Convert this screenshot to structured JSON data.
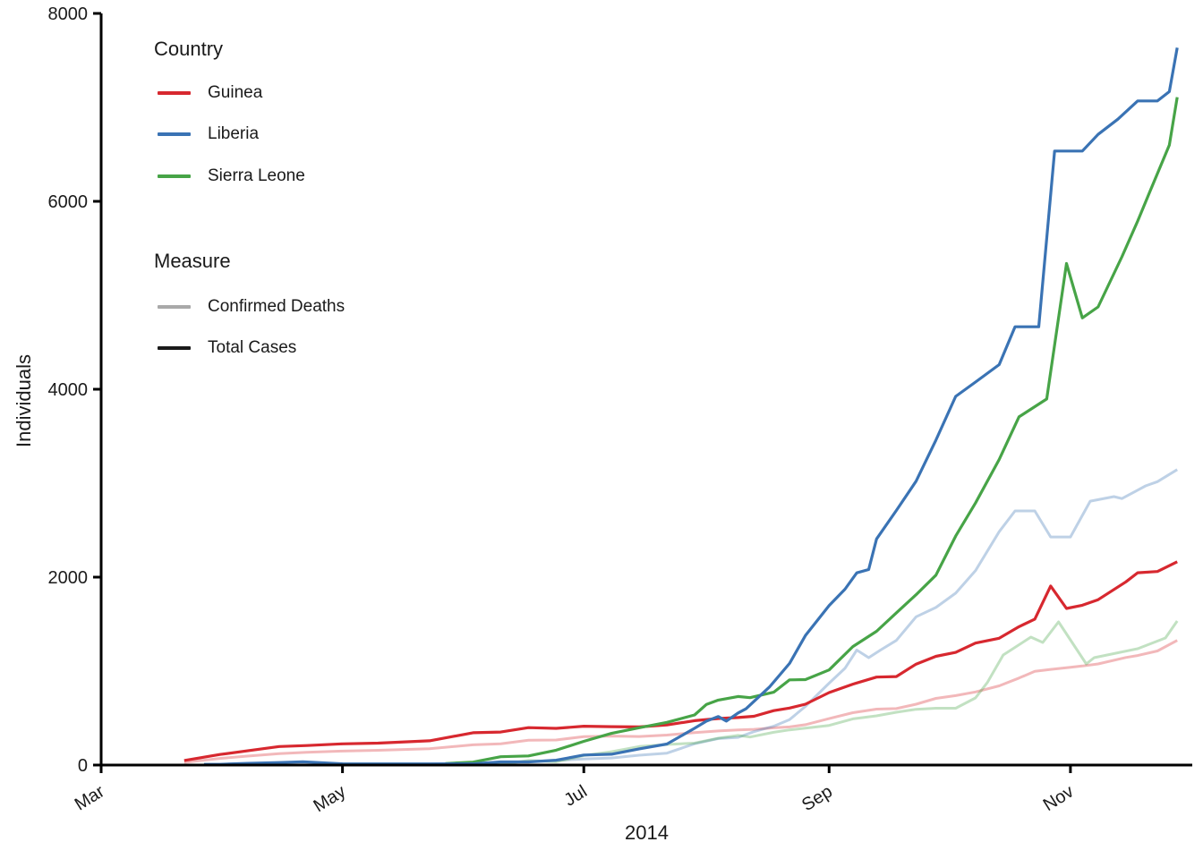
{
  "chart_data": {
    "type": "line",
    "title": "",
    "xlabel": "2014",
    "ylabel": "Individuals",
    "ylim": [
      0,
      8000
    ],
    "yticks": [
      0,
      2000,
      4000,
      6000,
      8000
    ],
    "xticks": [
      {
        "label": "Mar",
        "date": "2014-03-01"
      },
      {
        "label": "May",
        "date": "2014-05-01"
      },
      {
        "label": "Jul",
        "date": "2014-07-01"
      },
      {
        "label": "Sep",
        "date": "2014-09-01"
      },
      {
        "label": "Nov",
        "date": "2014-11-01"
      }
    ],
    "x_range": [
      "2014-03-01",
      "2014-12-01"
    ],
    "grid": false,
    "legend_position": "inside-top-left",
    "legend": {
      "country_title": "Country",
      "measure_title": "Measure",
      "countries": [
        {
          "label": "Guinea",
          "color": "#d7282f"
        },
        {
          "label": "Liberia",
          "color": "#3a73b4"
        },
        {
          "label": "Sierra Leone",
          "color": "#47a447"
        }
      ],
      "measures": [
        {
          "label": "Confirmed Deaths",
          "color": "#a9a9a9"
        },
        {
          "label": "Total Cases",
          "color": "#1a1a1a"
        }
      ]
    },
    "series": [
      {
        "name": "Guinea Confirmed Deaths",
        "country": "Guinea",
        "measure": "Confirmed Deaths",
        "color": "#d7282f",
        "opacity": 0.33,
        "width": 3,
        "points": [
          [
            "2014-03-22",
            29
          ],
          [
            "2014-03-31",
            70
          ],
          [
            "2014-04-07",
            95
          ],
          [
            "2014-04-15",
            122
          ],
          [
            "2014-04-22",
            136
          ],
          [
            "2014-05-01",
            149
          ],
          [
            "2014-05-10",
            157
          ],
          [
            "2014-05-23",
            174
          ],
          [
            "2014-06-03",
            215
          ],
          [
            "2014-06-10",
            226
          ],
          [
            "2014-06-17",
            264
          ],
          [
            "2014-06-24",
            267
          ],
          [
            "2014-07-01",
            303
          ],
          [
            "2014-07-08",
            309
          ],
          [
            "2014-07-15",
            304
          ],
          [
            "2014-07-22",
            319
          ],
          [
            "2014-07-29",
            346
          ],
          [
            "2014-08-04",
            363
          ],
          [
            "2014-08-09",
            373
          ],
          [
            "2014-08-13",
            380
          ],
          [
            "2014-08-18",
            396
          ],
          [
            "2014-08-22",
            406
          ],
          [
            "2014-08-26",
            430
          ],
          [
            "2014-09-01",
            494
          ],
          [
            "2014-09-07",
            557
          ],
          [
            "2014-09-13",
            595
          ],
          [
            "2014-09-18",
            601
          ],
          [
            "2014-09-23",
            648
          ],
          [
            "2014-09-28",
            710
          ],
          [
            "2014-10-03",
            739
          ],
          [
            "2014-10-08",
            778
          ],
          [
            "2014-10-14",
            843
          ],
          [
            "2014-10-19",
            926
          ],
          [
            "2014-10-23",
            997
          ],
          [
            "2014-10-27",
            1018
          ],
          [
            "2014-11-01",
            1041
          ],
          [
            "2014-11-04",
            1054
          ],
          [
            "2014-11-08",
            1076
          ],
          [
            "2014-11-15",
            1145
          ],
          [
            "2014-11-18",
            1166
          ],
          [
            "2014-11-23",
            1214
          ],
          [
            "2014-11-28",
            1327
          ]
        ]
      },
      {
        "name": "Liberia Confirmed Deaths",
        "country": "Liberia",
        "measure": "Confirmed Deaths",
        "color": "#3a73b4",
        "opacity": 0.33,
        "width": 3,
        "points": [
          [
            "2014-04-07",
            2
          ],
          [
            "2014-04-21",
            13
          ],
          [
            "2014-05-10",
            11
          ],
          [
            "2014-05-23",
            11
          ],
          [
            "2014-06-10",
            24
          ],
          [
            "2014-06-24",
            49
          ],
          [
            "2014-07-01",
            65
          ],
          [
            "2014-07-08",
            75
          ],
          [
            "2014-07-15",
            105
          ],
          [
            "2014-07-22",
            127
          ],
          [
            "2014-07-29",
            227
          ],
          [
            "2014-08-04",
            282
          ],
          [
            "2014-08-09",
            294
          ],
          [
            "2014-08-13",
            355
          ],
          [
            "2014-08-18",
            413
          ],
          [
            "2014-08-22",
            484
          ],
          [
            "2014-08-26",
            624
          ],
          [
            "2014-09-01",
            871
          ],
          [
            "2014-09-05",
            1030
          ],
          [
            "2014-09-08",
            1224
          ],
          [
            "2014-09-11",
            1143
          ],
          [
            "2014-09-14",
            1224
          ],
          [
            "2014-09-18",
            1327
          ],
          [
            "2014-09-23",
            1578
          ],
          [
            "2014-09-28",
            1677
          ],
          [
            "2014-10-03",
            1830
          ],
          [
            "2014-10-08",
            2069
          ],
          [
            "2014-10-14",
            2484
          ],
          [
            "2014-10-18",
            2705
          ],
          [
            "2014-10-23",
            2705
          ],
          [
            "2014-10-27",
            2428
          ],
          [
            "2014-11-01",
            2428
          ],
          [
            "2014-11-06",
            2809
          ],
          [
            "2014-11-12",
            2857
          ],
          [
            "2014-11-14",
            2836
          ],
          [
            "2014-11-20",
            2971
          ],
          [
            "2014-11-23",
            3016
          ],
          [
            "2014-11-28",
            3145
          ]
        ]
      },
      {
        "name": "Sierra Leone Confirmed Deaths",
        "country": "Sierra Leone",
        "measure": "Confirmed Deaths",
        "color": "#47a447",
        "opacity": 0.33,
        "width": 3,
        "points": [
          [
            "2014-05-27",
            5
          ],
          [
            "2014-06-03",
            7
          ],
          [
            "2014-06-10",
            7
          ],
          [
            "2014-06-17",
            49
          ],
          [
            "2014-06-24",
            34
          ],
          [
            "2014-07-01",
            101
          ],
          [
            "2014-07-08",
            142
          ],
          [
            "2014-07-15",
            197
          ],
          [
            "2014-07-22",
            219
          ],
          [
            "2014-07-29",
            233
          ],
          [
            "2014-08-04",
            286
          ],
          [
            "2014-08-09",
            315
          ],
          [
            "2014-08-12",
            298
          ],
          [
            "2014-08-18",
            349
          ],
          [
            "2014-08-22",
            374
          ],
          [
            "2014-08-26",
            392
          ],
          [
            "2014-09-01",
            422
          ],
          [
            "2014-09-07",
            491
          ],
          [
            "2014-09-13",
            524
          ],
          [
            "2014-09-18",
            562
          ],
          [
            "2014-09-23",
            593
          ],
          [
            "2014-09-28",
            605
          ],
          [
            "2014-10-03",
            605
          ],
          [
            "2014-10-08",
            714
          ],
          [
            "2014-10-11",
            879
          ],
          [
            "2014-10-15",
            1171
          ],
          [
            "2014-10-22",
            1362
          ],
          [
            "2014-10-25",
            1305
          ],
          [
            "2014-10-29",
            1524
          ],
          [
            "2014-11-05",
            1076
          ],
          [
            "2014-11-07",
            1143
          ],
          [
            "2014-11-18",
            1238
          ],
          [
            "2014-11-25",
            1352
          ],
          [
            "2014-11-28",
            1533
          ]
        ]
      },
      {
        "name": "Guinea Total Cases",
        "country": "Guinea",
        "measure": "Total Cases",
        "color": "#d7282f",
        "opacity": 1,
        "width": 3.2,
        "points": [
          [
            "2014-03-22",
            49
          ],
          [
            "2014-03-31",
            112
          ],
          [
            "2014-04-07",
            151
          ],
          [
            "2014-04-15",
            197
          ],
          [
            "2014-04-22",
            208
          ],
          [
            "2014-05-01",
            226
          ],
          [
            "2014-05-10",
            233
          ],
          [
            "2014-05-23",
            258
          ],
          [
            "2014-06-03",
            344
          ],
          [
            "2014-06-10",
            351
          ],
          [
            "2014-06-17",
            398
          ],
          [
            "2014-06-24",
            390
          ],
          [
            "2014-07-01",
            413
          ],
          [
            "2014-07-08",
            409
          ],
          [
            "2014-07-15",
            406
          ],
          [
            "2014-07-22",
            427
          ],
          [
            "2014-07-29",
            472
          ],
          [
            "2014-08-04",
            495
          ],
          [
            "2014-08-09",
            506
          ],
          [
            "2014-08-13",
            519
          ],
          [
            "2014-08-18",
            579
          ],
          [
            "2014-08-22",
            607
          ],
          [
            "2014-08-26",
            648
          ],
          [
            "2014-09-01",
            771
          ],
          [
            "2014-09-07",
            861
          ],
          [
            "2014-09-13",
            936
          ],
          [
            "2014-09-18",
            942
          ],
          [
            "2014-09-23",
            1074
          ],
          [
            "2014-09-28",
            1157
          ],
          [
            "2014-10-03",
            1199
          ],
          [
            "2014-10-08",
            1298
          ],
          [
            "2014-10-14",
            1350
          ],
          [
            "2014-10-19",
            1472
          ],
          [
            "2014-10-23",
            1553
          ],
          [
            "2014-10-27",
            1906
          ],
          [
            "2014-10-31",
            1667
          ],
          [
            "2014-11-04",
            1701
          ],
          [
            "2014-11-08",
            1760
          ],
          [
            "2014-11-15",
            1950
          ],
          [
            "2014-11-18",
            2047
          ],
          [
            "2014-11-23",
            2060
          ],
          [
            "2014-11-28",
            2164
          ]
        ]
      },
      {
        "name": "Sierra Leone Total Cases",
        "country": "Sierra Leone",
        "measure": "Total Cases",
        "color": "#47a447",
        "opacity": 1,
        "width": 3.2,
        "points": [
          [
            "2014-05-27",
            16
          ],
          [
            "2014-06-03",
            31
          ],
          [
            "2014-06-10",
            89
          ],
          [
            "2014-06-17",
            97
          ],
          [
            "2014-06-24",
            158
          ],
          [
            "2014-07-01",
            252
          ],
          [
            "2014-07-08",
            337
          ],
          [
            "2014-07-15",
            397
          ],
          [
            "2014-07-22",
            454
          ],
          [
            "2014-07-29",
            533
          ],
          [
            "2014-08-01",
            646
          ],
          [
            "2014-08-04",
            691
          ],
          [
            "2014-08-09",
            730
          ],
          [
            "2014-08-12",
            717
          ],
          [
            "2014-08-18",
            775
          ],
          [
            "2014-08-22",
            907
          ],
          [
            "2014-08-26",
            910
          ],
          [
            "2014-09-01",
            1012
          ],
          [
            "2014-09-07",
            1261
          ],
          [
            "2014-09-13",
            1424
          ],
          [
            "2014-09-18",
            1620
          ],
          [
            "2014-09-23",
            1813
          ],
          [
            "2014-09-28",
            2021
          ],
          [
            "2014-10-03",
            2437
          ],
          [
            "2014-10-08",
            2789
          ],
          [
            "2014-10-14",
            3252
          ],
          [
            "2014-10-19",
            3706
          ],
          [
            "2014-10-26",
            3896
          ],
          [
            "2014-10-31",
            5338
          ],
          [
            "2014-11-04",
            4759
          ],
          [
            "2014-11-08",
            4876
          ],
          [
            "2014-11-14",
            5410
          ],
          [
            "2014-11-18",
            5790
          ],
          [
            "2014-11-21",
            6095
          ],
          [
            "2014-11-26",
            6599
          ],
          [
            "2014-11-28",
            7109
          ]
        ]
      },
      {
        "name": "Liberia Total Cases",
        "country": "Liberia",
        "measure": "Total Cases",
        "color": "#3a73b4",
        "opacity": 1,
        "width": 3.2,
        "points": [
          [
            "2014-03-27",
            8
          ],
          [
            "2014-03-31",
            8
          ],
          [
            "2014-04-07",
            18
          ],
          [
            "2014-04-15",
            27
          ],
          [
            "2014-04-21",
            35
          ],
          [
            "2014-05-01",
            13
          ],
          [
            "2014-05-10",
            12
          ],
          [
            "2014-05-23",
            12
          ],
          [
            "2014-06-03",
            13
          ],
          [
            "2014-06-10",
            33
          ],
          [
            "2014-06-17",
            33
          ],
          [
            "2014-06-24",
            51
          ],
          [
            "2014-07-01",
            107
          ],
          [
            "2014-07-08",
            115
          ],
          [
            "2014-07-15",
            172
          ],
          [
            "2014-07-22",
            224
          ],
          [
            "2014-07-29",
            391
          ],
          [
            "2014-08-01",
            468
          ],
          [
            "2014-08-04",
            516
          ],
          [
            "2014-08-06",
            468
          ],
          [
            "2014-08-09",
            554
          ],
          [
            "2014-08-11",
            599
          ],
          [
            "2014-08-17",
            834
          ],
          [
            "2014-08-22",
            1082
          ],
          [
            "2014-08-26",
            1378
          ],
          [
            "2014-09-01",
            1698
          ],
          [
            "2014-09-05",
            1871
          ],
          [
            "2014-09-08",
            2046
          ],
          [
            "2014-09-11",
            2081
          ],
          [
            "2014-09-13",
            2407
          ],
          [
            "2014-09-18",
            2710
          ],
          [
            "2014-09-23",
            3022
          ],
          [
            "2014-09-28",
            3458
          ],
          [
            "2014-10-03",
            3924
          ],
          [
            "2014-10-08",
            4076
          ],
          [
            "2014-10-14",
            4262
          ],
          [
            "2014-10-18",
            4665
          ],
          [
            "2014-10-24",
            4665
          ],
          [
            "2014-10-28",
            6535
          ],
          [
            "2014-11-04",
            6535
          ],
          [
            "2014-11-08",
            6712
          ],
          [
            "2014-11-13",
            6874
          ],
          [
            "2014-11-18",
            7069
          ],
          [
            "2014-11-23",
            7069
          ],
          [
            "2014-11-26",
            7168
          ],
          [
            "2014-11-28",
            7635
          ]
        ]
      }
    ]
  }
}
